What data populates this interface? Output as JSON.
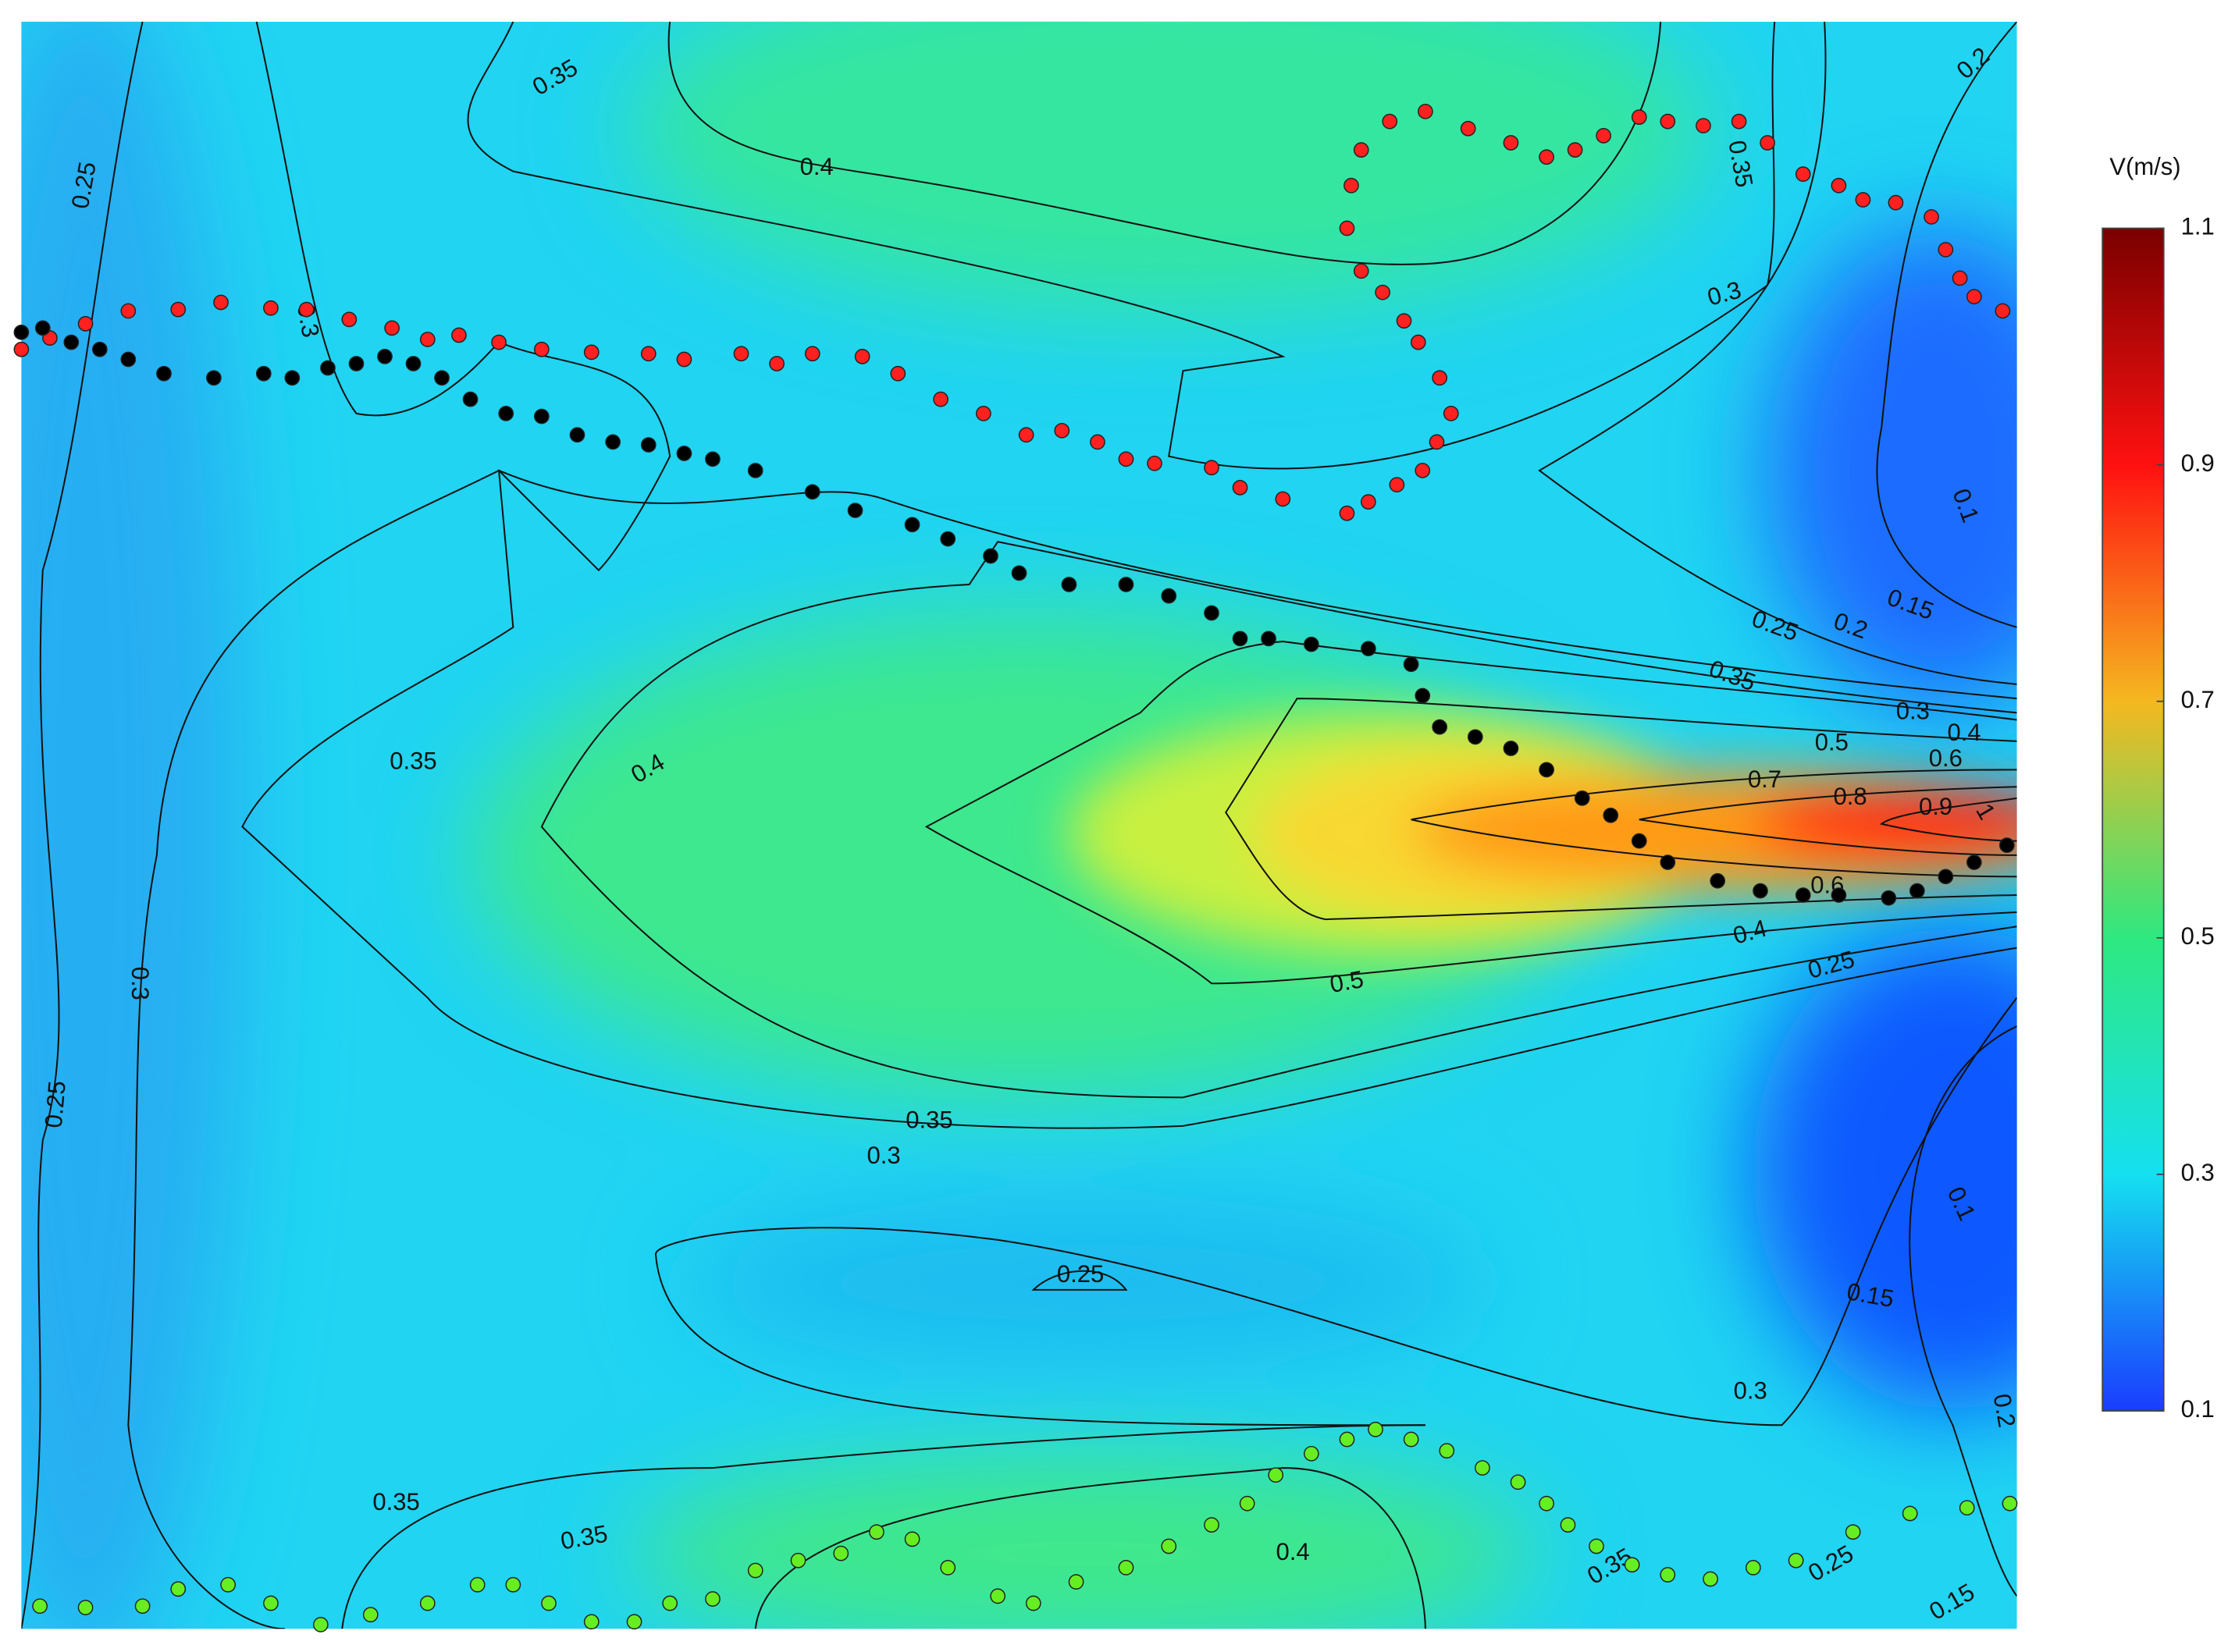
{
  "chart_data": {
    "type": "contour",
    "contour_labels": [
      "0.35",
      "0.4",
      "0.25",
      "0.3",
      "0.35",
      "0.3",
      "0.2",
      "0.1",
      "0.15",
      "0.2",
      "0.25",
      "0.35",
      "0.3",
      "0.4",
      "0.5",
      "0.6",
      "0.7",
      "0.8",
      "0.9",
      "1",
      "0.6",
      "0.4",
      "0.25",
      "0.5",
      "0.35",
      "0.4",
      "0.3",
      "0.25",
      "0.35",
      "0.3",
      "0.25",
      "0.15",
      "0.1",
      "0.3",
      "0.2",
      "0.35",
      "0.35",
      "0.4",
      "0.35",
      "0.25",
      "0.15"
    ],
    "colorbar": {
      "label": "V(m/s)",
      "lim": [
        0.1,
        1.1
      ],
      "ticks": [
        0.1,
        0.3,
        0.5,
        0.7,
        0.9,
        1.1
      ],
      "colors": [
        "#1a3cff",
        "#15e0f0",
        "#2ee880",
        "#f5b820",
        "#ff1010",
        "#7a0000"
      ]
    },
    "xlim": [
      0,
      1400
    ],
    "ylim": [
      1128,
      0
    ],
    "series": [
      {
        "color": "#ff2020",
        "x": [
          0,
          20,
          45,
          75,
          110,
          140,
          175,
          200,
          230,
          260,
          285,
          307,
          335,
          365,
          400,
          440,
          465,
          505,
          530,
          555,
          590,
          615,
          645,
          675,
          705,
          730,
          755,
          775,
          795,
          835,
          855,
          885,
          930,
          945,
          965,
          983,
          993,
          1003,
          995,
          980,
          970,
          955,
          940,
          930,
          933,
          940,
          960,
          985,
          1015,
          1045,
          1070,
          1090,
          1110,
          1135,
          1155,
          1180,
          1205,
          1225,
          1250,
          1275,
          1292,
          1315,
          1340,
          1350,
          1360,
          1370,
          1390
        ],
        "y": [
          230,
          222,
          212,
          203,
          202,
          197,
          201,
          202,
          209,
          215,
          223,
          220,
          225,
          230,
          232,
          233,
          237,
          233,
          240,
          233,
          235,
          247,
          265,
          275,
          290,
          287,
          295,
          307,
          310,
          313,
          327,
          335,
          345,
          337,
          325,
          315,
          295,
          275,
          250,
          225,
          210,
          190,
          175,
          145,
          115,
          90,
          70,
          63,
          75,
          85,
          95,
          90,
          80,
          67,
          70,
          73,
          70,
          85,
          107,
          115,
          125,
          127,
          137,
          160,
          180,
          193,
          203
        ]
      },
      {
        "color": "#000000",
        "x": [
          0,
          15,
          35,
          55,
          75,
          100,
          135,
          170,
          190,
          215,
          235,
          255,
          275,
          295,
          315,
          340,
          365,
          390,
          415,
          440,
          465,
          485,
          515,
          555,
          585,
          625,
          650,
          680,
          700,
          735,
          775,
          805,
          835,
          855,
          875,
          905,
          945,
          975,
          983,
          995,
          1020,
          1045,
          1070,
          1095,
          1115,
          1135,
          1155,
          1190,
          1220,
          1250,
          1275,
          1310,
          1330,
          1350,
          1370,
          1393
        ],
        "y": [
          218,
          215,
          225,
          230,
          237,
          247,
          250,
          247,
          250,
          243,
          240,
          235,
          240,
          250,
          265,
          275,
          277,
          290,
          295,
          297,
          303,
          307,
          315,
          330,
          343,
          353,
          363,
          375,
          387,
          395,
          395,
          403,
          415,
          433,
          433,
          437,
          440,
          451,
          473,
          495,
          502,
          510,
          525,
          545,
          557,
          575,
          590,
          603,
          610,
          613,
          613,
          615,
          610,
          600,
          590,
          578
        ]
      },
      {
        "color": "#66ee22",
        "x": [
          13,
          45,
          85,
          110,
          145,
          175,
          210,
          245,
          285,
          320,
          345,
          370,
          400,
          430,
          455,
          485,
          515,
          545,
          575,
          600,
          625,
          650,
          685,
          710,
          740,
          775,
          805,
          835,
          860,
          880,
          905,
          930,
          950,
          975,
          1000,
          1025,
          1050,
          1070,
          1085,
          1105,
          1130,
          1155,
          1185,
          1215,
          1245,
          1285,
          1325,
          1365,
          1395
        ],
        "y": [
          1112,
          1113,
          1112,
          1100,
          1097,
          1110,
          1125,
          1118,
          1110,
          1097,
          1097,
          1110,
          1123,
          1123,
          1110,
          1107,
          1087,
          1080,
          1075,
          1060,
          1065,
          1085,
          1105,
          1110,
          1095,
          1085,
          1070,
          1055,
          1040,
          1020,
          1005,
          995,
          988,
          995,
          1003,
          1015,
          1025,
          1040,
          1055,
          1070,
          1083,
          1090,
          1093,
          1085,
          1080,
          1060,
          1047,
          1043,
          1040
        ]
      }
    ]
  }
}
